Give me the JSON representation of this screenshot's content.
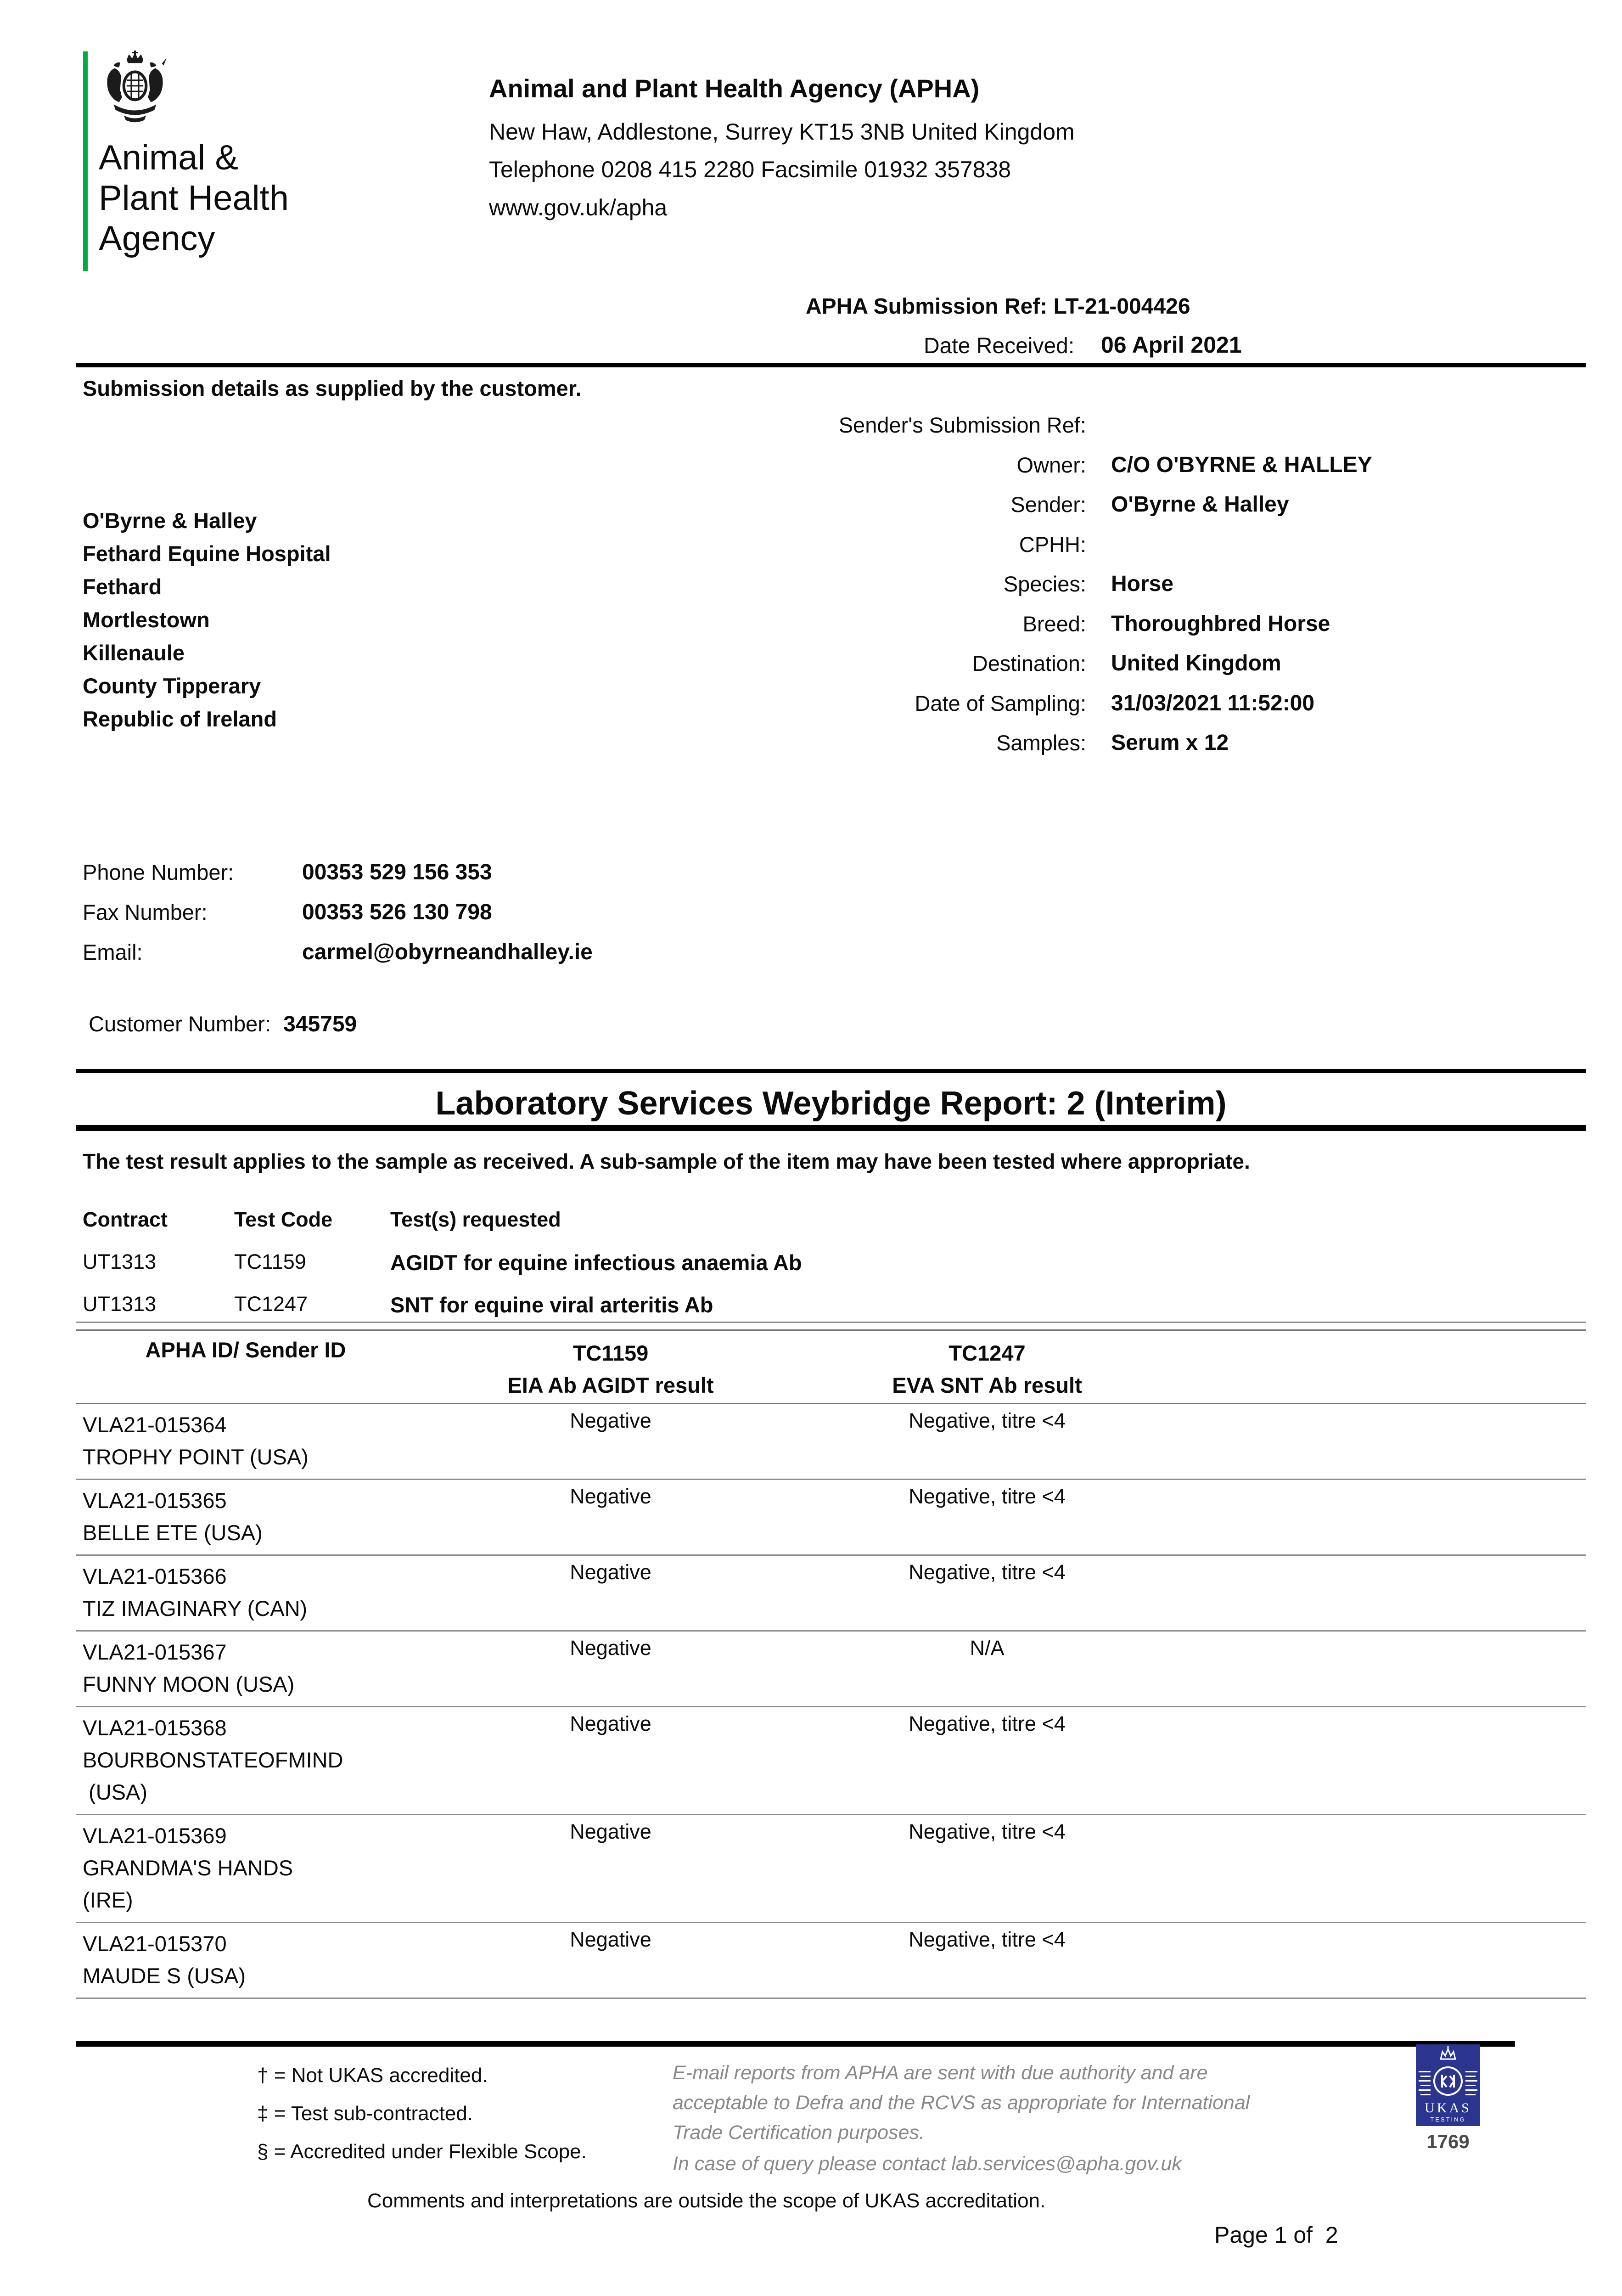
{
  "logo": {
    "line1": "Animal &",
    "line2": "Plant Health",
    "line3": "Agency"
  },
  "header": {
    "title": "Animal and Plant Health Agency (APHA)",
    "address": "New Haw, Addlestone, Surrey KT15 3NB United Kingdom",
    "phone_fax": "Telephone 0208 415 2280 Facsimile 01932 357838",
    "website": "www.gov.uk/apha"
  },
  "submission": {
    "ref_label": "APHA Submission Ref:",
    "ref_value": "LT-21-004426",
    "date_received_label": "Date Received:",
    "date_received_value": "06 April 2021",
    "details_heading": "Submission details as supplied by the customer.",
    "fields": [
      {
        "label": "Sender's Submission Ref:",
        "value": ""
      },
      {
        "label": "Owner:",
        "value": "C/O O'BYRNE & HALLEY"
      },
      {
        "label": "Sender:",
        "value": "O'Byrne & Halley"
      },
      {
        "label": "CPHH:",
        "value": ""
      },
      {
        "label": "Species:",
        "value": "Horse"
      },
      {
        "label": "Breed:",
        "value": "Thoroughbred Horse"
      },
      {
        "label": "Destination:",
        "value": "United Kingdom"
      },
      {
        "label": "Date of Sampling:",
        "value": "31/03/2021 11:52:00"
      },
      {
        "label": "Samples:",
        "value": "Serum x 12"
      }
    ]
  },
  "customer": {
    "address_lines": [
      "O'Byrne & Halley",
      "Fethard Equine Hospital",
      "Fethard",
      "Mortlestown",
      "Killenaule",
      "County Tipperary",
      "Republic of Ireland"
    ],
    "phone_label": "Phone Number:",
    "phone": "00353 529 156 353",
    "fax_label": "Fax Number:",
    "fax": "00353 526 130 798",
    "email_label": "Email:",
    "email": "carmel@obyrneandhalley.ie",
    "customer_number_label": "Customer Number:",
    "customer_number": "345759"
  },
  "report": {
    "title": "Laboratory Services Weybridge Report: 2 (Interim)",
    "statement": "The test result applies to the sample as received. A sub-sample of the item may have been tested where appropriate.",
    "tests_requested": {
      "headers": [
        "Contract",
        "Test Code",
        "Test(s) requested"
      ],
      "rows": [
        {
          "contract": "UT1313",
          "code": "TC1159",
          "name": "AGIDT for equine infectious anaemia Ab"
        },
        {
          "contract": "UT1313",
          "code": "TC1247",
          "name": "SNT for equine viral arteritis Ab"
        }
      ]
    },
    "results": {
      "col1_header": "APHA ID/ Sender ID",
      "col2_header_line1": "TC1159",
      "col2_header_line2": "EIA Ab AGIDT result",
      "col3_header_line1": "TC1247",
      "col3_header_line2": "EVA SNT Ab result",
      "rows": [
        {
          "id": "VLA21-015364",
          "name_lines": [
            "TROPHY POINT (USA)"
          ],
          "eia": "Negative",
          "eva": "Negative, titre <4"
        },
        {
          "id": "VLA21-015365",
          "name_lines": [
            "BELLE ETE (USA)"
          ],
          "eia": "Negative",
          "eva": "Negative, titre <4"
        },
        {
          "id": "VLA21-015366",
          "name_lines": [
            "TIZ IMAGINARY (CAN)"
          ],
          "eia": "Negative",
          "eva": "Negative, titre <4"
        },
        {
          "id": "VLA21-015367",
          "name_lines": [
            "FUNNY MOON (USA)"
          ],
          "eia": "Negative",
          "eva": "N/A"
        },
        {
          "id": "VLA21-015368",
          "name_lines": [
            "BOURBONSTATEOFMIND",
            " (USA)"
          ],
          "eia": "Negative",
          "eva": "Negative, titre <4"
        },
        {
          "id": "VLA21-015369",
          "name_lines": [
            "GRANDMA'S HANDS",
            "(IRE)"
          ],
          "eia": "Negative",
          "eva": "Negative, titre <4"
        },
        {
          "id": "VLA21-015370",
          "name_lines": [
            "MAUDE S (USA)"
          ],
          "eia": "Negative",
          "eva": "Negative, titre <4"
        }
      ]
    }
  },
  "footer": {
    "notes": [
      "† = Not UKAS accredited.",
      "‡ = Test sub-contracted.",
      "§ = Accredited under Flexible Scope."
    ],
    "email_notice_lines": [
      "E-mail reports from APHA are sent with due authority and are",
      "acceptable to Defra and the RCVS as appropriate for International",
      "Trade Certification purposes."
    ],
    "query_notice": "In case of query please contact lab.services@apha.gov.uk",
    "comments_line": "Comments and interpretations are outside the scope of UKAS accreditation.",
    "ukas": {
      "label": "UKAS",
      "sublabel": "TESTING",
      "number": "1769"
    },
    "page_label": "Page 1 of  2"
  },
  "colors": {
    "green_bar": "#00ab44",
    "ukas_blue": "#2b3590",
    "footer_gray": "#898989"
  }
}
